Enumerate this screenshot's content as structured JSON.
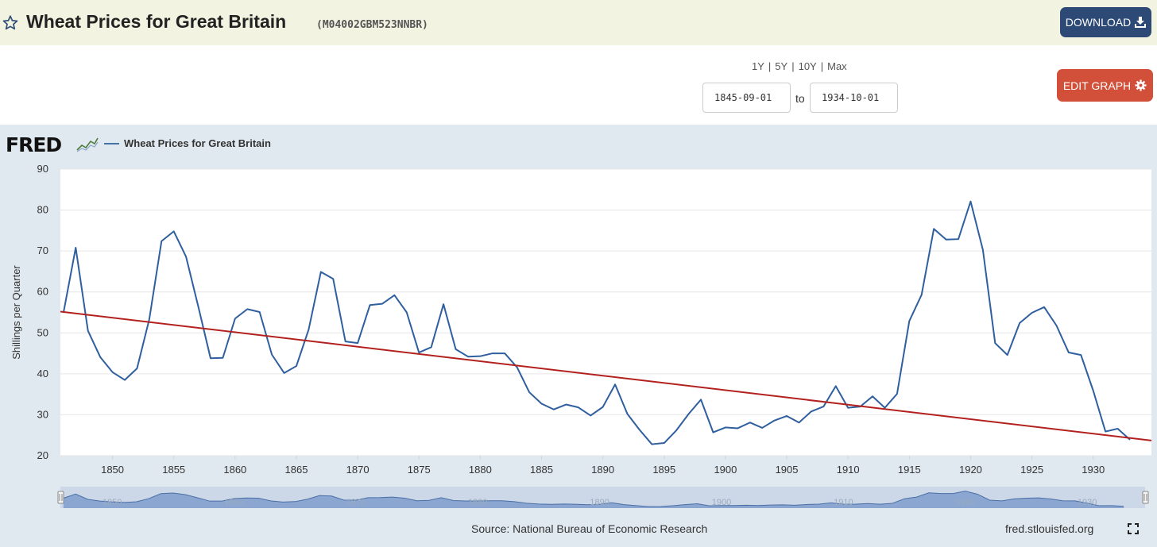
{
  "header": {
    "title": "Wheat Prices for Great Britain",
    "series_id": "(M04002GBM523NNBR)",
    "download_label": "DOWNLOAD"
  },
  "controls": {
    "ranges": [
      "1Y",
      "5Y",
      "10Y",
      "Max"
    ],
    "start_date": "1845-09-01",
    "to_label": "to",
    "end_date": "1934-10-01",
    "edit_label": "EDIT GRAPH"
  },
  "graph": {
    "logo": "FRED",
    "source": "Source: National Bureau of Economic Research",
    "site": "fred.stlouisfed.org"
  },
  "colors": {
    "series": "#2f5f9e",
    "trend": "#b3211e",
    "header_bg": "#f2f3e0",
    "panel_bg": "#e1e9f0",
    "download_btn": "#2c4a75",
    "edit_btn": "#d2503a"
  },
  "chart_data": {
    "type": "line",
    "ylabel": "Shillings per Quarter",
    "ylim": [
      20,
      90
    ],
    "yticks": [
      20,
      30,
      40,
      50,
      60,
      70,
      80,
      90
    ],
    "xlim": [
      1845.75,
      1934.75
    ],
    "xticks": [
      1850,
      1855,
      1860,
      1865,
      1870,
      1875,
      1880,
      1885,
      1890,
      1895,
      1900,
      1905,
      1910,
      1915,
      1920,
      1925,
      1930
    ],
    "navigator_labels": [
      1850,
      1860,
      1870,
      1880,
      1890,
      1900,
      1910,
      1920,
      1930
    ],
    "series": [
      {
        "name": "Wheat Prices for Great Britain",
        "x": [
          1846,
          1847,
          1848,
          1849,
          1850,
          1851,
          1852,
          1853,
          1854,
          1855,
          1856,
          1857,
          1858,
          1859,
          1860,
          1861,
          1862,
          1863,
          1864,
          1865,
          1866,
          1867,
          1868,
          1869,
          1870,
          1871,
          1872,
          1873,
          1874,
          1875,
          1876,
          1877,
          1878,
          1879,
          1880,
          1881,
          1882,
          1883,
          1884,
          1885,
          1886,
          1887,
          1888,
          1889,
          1890,
          1891,
          1892,
          1893,
          1894,
          1895,
          1896,
          1897,
          1898,
          1899,
          1900,
          1901,
          1902,
          1903,
          1904,
          1905,
          1906,
          1907,
          1908,
          1909,
          1910,
          1911,
          1912,
          1913,
          1914,
          1915,
          1916,
          1917,
          1918,
          1919,
          1920,
          1921,
          1922,
          1923,
          1924,
          1925,
          1926,
          1927,
          1928,
          1929,
          1930,
          1931,
          1932,
          1933
        ],
        "values": [
          54.9,
          70.8,
          50.5,
          44.1,
          40.4,
          38.5,
          41.3,
          53.3,
          72.4,
          74.8,
          68.6,
          56.4,
          43.8,
          43.9,
          53.5,
          55.8,
          55.1,
          44.7,
          40.2,
          41.9,
          50.8,
          64.9,
          63.2,
          47.9,
          47.5,
          56.8,
          57.1,
          59.2,
          55.0,
          45.2,
          46.5,
          57.0,
          46.0,
          44.2,
          44.3,
          45.0,
          45.0,
          41.6,
          35.5,
          32.7,
          31.3,
          32.5,
          31.8,
          29.8,
          31.9,
          37.4,
          30.2,
          26.3,
          22.8,
          23.1,
          26.2,
          30.2,
          33.7,
          25.7,
          26.9,
          26.7,
          28.1,
          26.8,
          28.6,
          29.7,
          28.1,
          30.8,
          32.0,
          37.0,
          31.7,
          32.0,
          34.5,
          31.7,
          35.1,
          52.9,
          59.3,
          75.4,
          72.8,
          72.9,
          82.1,
          70.3,
          47.5,
          44.6,
          52.4,
          54.9,
          56.3,
          51.8,
          45.2,
          44.6,
          35.9,
          25.9,
          26.6,
          23.9
        ]
      },
      {
        "name": "Trend",
        "x": [
          1845.75,
          1934.75
        ],
        "values": [
          55.2,
          23.7
        ]
      }
    ]
  }
}
